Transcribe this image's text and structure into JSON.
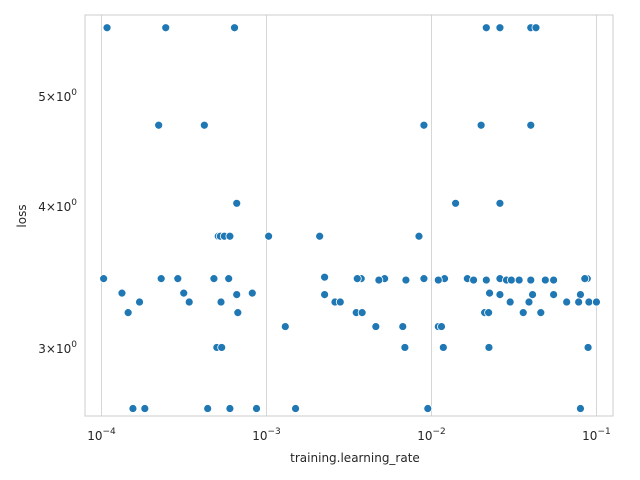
{
  "chart_data": {
    "type": "scatter",
    "xlabel": "training.learning_rate",
    "ylabel": "loss",
    "xscale": "log",
    "yscale": "log",
    "xlim": [
      7.94e-05,
      0.126
    ],
    "ylim": [
      2.62,
      5.9
    ],
    "grid": true,
    "marker_color": "#1f77b4",
    "x_ticks": [
      {
        "value": 0.0001,
        "base": "10",
        "exp": "−4"
      },
      {
        "value": 0.001,
        "base": "10",
        "exp": "−3"
      },
      {
        "value": 0.01,
        "base": "10",
        "exp": "−2"
      },
      {
        "value": 0.1,
        "base": "10",
        "exp": "−1"
      }
    ],
    "y_ticks": [
      {
        "value": 3,
        "mant": "3",
        "base": "10",
        "exp": "0"
      },
      {
        "value": 4,
        "mant": "4",
        "base": "10",
        "exp": "0"
      },
      {
        "value": 5,
        "mant": "5",
        "base": "10",
        "exp": "0"
      }
    ],
    "points": [
      [
        0.000108,
        5.75
      ],
      [
        0.000245,
        5.75
      ],
      [
        0.00064,
        5.75
      ],
      [
        0.0215,
        5.75
      ],
      [
        0.026,
        5.75
      ],
      [
        0.04,
        5.75
      ],
      [
        0.043,
        5.75
      ],
      [
        0.000222,
        4.72
      ],
      [
        0.00042,
        4.72
      ],
      [
        0.009,
        4.72
      ],
      [
        0.02,
        4.72
      ],
      [
        0.04,
        4.72
      ],
      [
        0.00066,
        4.03
      ],
      [
        0.014,
        4.03
      ],
      [
        0.026,
        4.03
      ],
      [
        0.00051,
        3.77
      ],
      [
        0.000525,
        3.77
      ],
      [
        0.000555,
        3.77
      ],
      [
        0.0006,
        3.77
      ],
      [
        0.00103,
        3.77
      ],
      [
        0.0021,
        3.77
      ],
      [
        0.0084,
        3.77
      ],
      [
        0.000103,
        3.46
      ],
      [
        0.00023,
        3.46
      ],
      [
        0.00029,
        3.46
      ],
      [
        0.00048,
        3.46
      ],
      [
        0.00059,
        3.46
      ],
      [
        0.00375,
        3.46
      ],
      [
        0.0052,
        3.46
      ],
      [
        0.009,
        3.46
      ],
      [
        0.012,
        3.46
      ],
      [
        0.0165,
        3.46
      ],
      [
        0.026,
        3.46
      ],
      [
        0.088,
        3.46
      ],
      [
        0.00225,
        3.47
      ],
      [
        0.00355,
        3.46
      ],
      [
        0.0048,
        3.45
      ],
      [
        0.007,
        3.45
      ],
      [
        0.011,
        3.45
      ],
      [
        0.018,
        3.45
      ],
      [
        0.0215,
        3.45
      ],
      [
        0.0285,
        3.45
      ],
      [
        0.0305,
        3.45
      ],
      [
        0.034,
        3.45
      ],
      [
        0.04,
        3.45
      ],
      [
        0.049,
        3.45
      ],
      [
        0.055,
        3.45
      ],
      [
        0.085,
        3.46
      ],
      [
        0.000133,
        3.36
      ],
      [
        0.000315,
        3.36
      ],
      [
        0.00066,
        3.35
      ],
      [
        0.00082,
        3.36
      ],
      [
        0.00225,
        3.35
      ],
      [
        0.0225,
        3.36
      ],
      [
        0.026,
        3.35
      ],
      [
        0.041,
        3.35
      ],
      [
        0.055,
        3.35
      ],
      [
        0.08,
        3.35
      ],
      [
        0.00017,
        3.3
      ],
      [
        0.00034,
        3.3
      ],
      [
        0.00053,
        3.3
      ],
      [
        0.0026,
        3.3
      ],
      [
        0.0028,
        3.3
      ],
      [
        0.03,
        3.3
      ],
      [
        0.039,
        3.3
      ],
      [
        0.066,
        3.3
      ],
      [
        0.078,
        3.3
      ],
      [
        0.09,
        3.3
      ],
      [
        0.1,
        3.3
      ],
      [
        0.000145,
        3.23
      ],
      [
        0.00067,
        3.23
      ],
      [
        0.0035,
        3.23
      ],
      [
        0.0038,
        3.23
      ],
      [
        0.021,
        3.23
      ],
      [
        0.0222,
        3.23
      ],
      [
        0.036,
        3.23
      ],
      [
        0.046,
        3.23
      ],
      [
        0.0013,
        3.14
      ],
      [
        0.0046,
        3.14
      ],
      [
        0.0067,
        3.14
      ],
      [
        0.011,
        3.14
      ],
      [
        0.0115,
        3.14
      ],
      [
        0.0005,
        3.01
      ],
      [
        0.000535,
        3.01
      ],
      [
        0.0069,
        3.01
      ],
      [
        0.0118,
        3.01
      ],
      [
        0.0223,
        3.01
      ],
      [
        0.089,
        3.01
      ],
      [
        0.000155,
        2.66
      ],
      [
        0.000183,
        2.66
      ],
      [
        0.00044,
        2.66
      ],
      [
        0.0006,
        2.66
      ],
      [
        0.00087,
        2.66
      ],
      [
        0.0015,
        2.66
      ],
      [
        0.0095,
        2.66
      ],
      [
        0.08,
        2.66
      ]
    ]
  }
}
